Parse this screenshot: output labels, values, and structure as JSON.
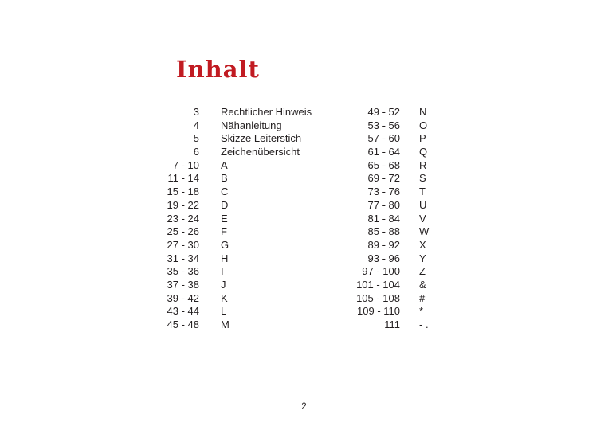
{
  "page": {
    "title": "Inhalt",
    "title_color": "#c11b22",
    "page_number": "2"
  },
  "toc": {
    "left": [
      {
        "pages": "3",
        "label": "Rechtlicher Hinweis"
      },
      {
        "pages": "4",
        "label": "Nähanleitung"
      },
      {
        "pages": "5",
        "label": "Skizze Leiterstich"
      },
      {
        "pages": "6",
        "label": "Zeichenübersicht"
      },
      {
        "pages": "7 - 10",
        "label": "A"
      },
      {
        "pages": "11 - 14",
        "label": "B"
      },
      {
        "pages": "15 - 18",
        "label": "C"
      },
      {
        "pages": "19 - 22",
        "label": "D"
      },
      {
        "pages": "23 - 24",
        "label": "E"
      },
      {
        "pages": "25 - 26",
        "label": "F"
      },
      {
        "pages": "27 - 30",
        "label": "G"
      },
      {
        "pages": "31 - 34",
        "label": "H"
      },
      {
        "pages": "35 - 36",
        "label": "I"
      },
      {
        "pages": "37 - 38",
        "label": "J"
      },
      {
        "pages": "39 - 42",
        "label": "K"
      },
      {
        "pages": "43 - 44",
        "label": "L"
      },
      {
        "pages": "45 - 48",
        "label": "M"
      }
    ],
    "right": [
      {
        "pages": "49 - 52",
        "label": "N"
      },
      {
        "pages": "53 - 56",
        "label": "O"
      },
      {
        "pages": "57 - 60",
        "label": "P"
      },
      {
        "pages": "61 - 64",
        "label": "Q"
      },
      {
        "pages": "65 - 68",
        "label": "R"
      },
      {
        "pages": "69 - 72",
        "label": "S"
      },
      {
        "pages": "73 - 76",
        "label": "T"
      },
      {
        "pages": "77 - 80",
        "label": "U"
      },
      {
        "pages": "81 - 84",
        "label": "V"
      },
      {
        "pages": "85 - 88",
        "label": "W"
      },
      {
        "pages": "89 - 92",
        "label": "X"
      },
      {
        "pages": "93 - 96",
        "label": "Y"
      },
      {
        "pages": "97 - 100",
        "label": "Z"
      },
      {
        "pages": "101 - 104",
        "label": "&"
      },
      {
        "pages": "105 - 108",
        "label": "#"
      },
      {
        "pages": "109 - 110",
        "label": "*"
      },
      {
        "pages": "111",
        "label": "- ."
      }
    ]
  }
}
